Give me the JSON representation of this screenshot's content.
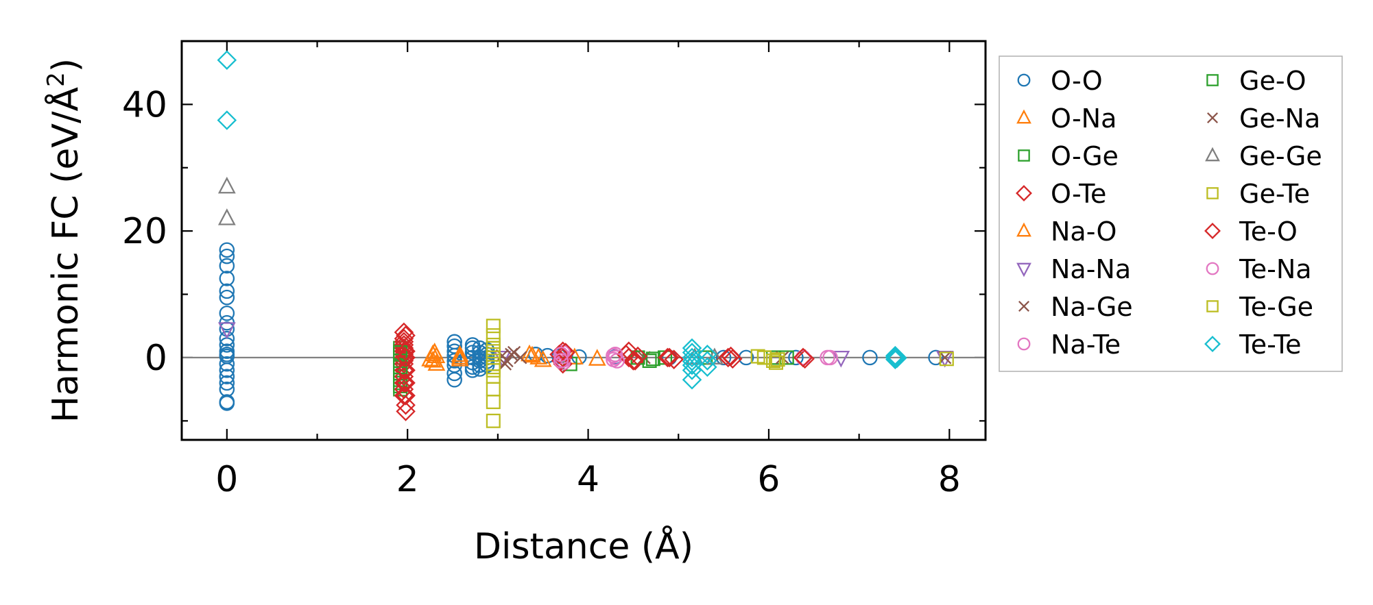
{
  "chart_data": {
    "type": "scatter",
    "title": "",
    "xlabel": "Distance (Å)",
    "ylabel_main": "Harmonic FC (eV/Å",
    "ylabel_sup": "2",
    "ylabel_close": ")",
    "xlim": [
      -0.5,
      8.4
    ],
    "ylim": [
      -13,
      50
    ],
    "xticks": [
      0,
      2,
      4,
      6,
      8
    ],
    "xtick_labels": [
      "0",
      "2",
      "4",
      "6",
      "8"
    ],
    "yticks": [
      0,
      20,
      40
    ],
    "ytick_labels": [
      "0",
      "20",
      "40"
    ],
    "x_minor_step": 1,
    "y_minor_step": 10,
    "zero_line": true,
    "grid": false,
    "legend_position": "outside-right",
    "legend_columns": 2,
    "series": [
      {
        "name": "O-O",
        "marker": "circle",
        "color": "#1f77b4",
        "filled": false,
        "x": [
          0,
          0,
          0,
          0,
          0,
          0,
          0,
          0,
          0,
          0,
          0,
          0,
          0,
          0,
          0,
          0,
          0,
          0,
          0,
          0,
          0,
          2.52,
          2.52,
          2.52,
          2.52,
          2.52,
          2.52,
          2.52,
          2.52,
          2.72,
          2.72,
          2.72,
          2.72,
          2.72,
          2.72,
          2.72,
          2.8,
          2.8,
          2.8,
          2.8,
          2.8,
          2.8,
          2.88,
          2.88,
          2.88,
          2.88,
          2.88,
          3.42,
          3.55,
          3.68,
          3.9,
          4.3,
          4.9,
          5.5,
          5.75,
          6.3,
          7.12,
          7.85
        ],
        "y": [
          17,
          16,
          14.5,
          12.5,
          10.5,
          9.5,
          7,
          5.5,
          4.5,
          3,
          2,
          1,
          -1,
          -2,
          -3,
          -4,
          -5,
          -7,
          -7.2,
          0.2,
          0.5,
          2.5,
          1.8,
          1,
          0.3,
          -0.5,
          -1.2,
          -2.5,
          -3.5,
          2,
          1.5,
          0.8,
          0,
          -0.8,
          -1.5,
          -2,
          1.5,
          0.8,
          0,
          -0.5,
          -1.2,
          -1.8,
          1.2,
          0.5,
          0,
          -0.6,
          -1.2,
          0.5,
          0.3,
          0.2,
          0.1,
          0.1,
          0,
          0,
          0,
          0,
          0,
          0
        ]
      },
      {
        "name": "O-Na",
        "marker": "triangle-up",
        "color": "#ff7f0e",
        "filled": false,
        "x": [
          2.28,
          2.28,
          2.32,
          2.32,
          2.58,
          2.58,
          3.38,
          3.45,
          3.85,
          4.1
        ],
        "y": [
          0.5,
          -0.5,
          0.2,
          -1,
          0.4,
          -0.3,
          0.3,
          0,
          0,
          -0.2
        ]
      },
      {
        "name": "O-Ge",
        "marker": "square",
        "color": "#2ca02c",
        "filled": false,
        "x": [
          1.92,
          1.92,
          1.92,
          1.92,
          1.92,
          1.92,
          1.92,
          1.92,
          1.92,
          1.92,
          1.92,
          1.92,
          1.92,
          1.92,
          3.8,
          4.68,
          4.85,
          5.3
        ],
        "y": [
          -4.5,
          -4,
          -3,
          -2,
          -1,
          0,
          1,
          -5,
          -3.5,
          -2.5,
          -1.5,
          -0.5,
          0.5,
          1.5,
          -1,
          -0.5,
          0,
          0
        ]
      },
      {
        "name": "O-Te",
        "marker": "diamond",
        "color": "#d62728",
        "filled": false,
        "x": [
          1.96,
          1.96,
          1.96,
          1.96,
          1.96,
          1.96,
          1.96,
          1.96,
          1.96,
          1.96,
          1.96,
          1.96,
          1.96,
          1.96,
          1.96,
          3.72,
          3.72,
          3.72,
          4.45,
          4.45,
          4.52,
          4.9,
          4.95,
          5.58,
          5.6,
          6.38,
          6.4
        ],
        "y": [
          4,
          3,
          2.5,
          2,
          1.5,
          1,
          0.5,
          0,
          -0.5,
          -1,
          -2,
          -3,
          -4,
          -5,
          -6,
          1,
          0,
          -1,
          1,
          0,
          -0.5,
          0,
          -0.3,
          0.2,
          -0.2,
          0,
          -0.2
        ]
      },
      {
        "name": "Na-O",
        "marker": "triangle-up",
        "color": "#ff7f0e",
        "filled": false,
        "x": [
          2.25,
          2.3,
          2.58,
          3.35,
          3.5
        ],
        "y": [
          -0.3,
          0.8,
          0,
          0.5,
          -0.4
        ]
      },
      {
        "name": "Na-Na",
        "marker": "triangle-down",
        "color": "#9467bd",
        "filled": false,
        "x": [
          0,
          3.05,
          6.8,
          7.95
        ],
        "y": [
          4.5,
          0,
          0,
          0
        ]
      },
      {
        "name": "Na-Ge",
        "marker": "x",
        "color": "#8c564b",
        "filled": false,
        "x": [
          3.05,
          3.1,
          3.18,
          3.25,
          4.62,
          5.45
        ],
        "y": [
          0.3,
          -0.5,
          0.8,
          0,
          0,
          0
        ]
      },
      {
        "name": "Na-Te",
        "marker": "circle",
        "color": "#e377c2",
        "filled": false,
        "x": [
          3.72,
          3.72,
          3.72,
          3.72,
          4.28,
          4.28,
          4.3,
          6.38,
          6.68
        ],
        "y": [
          0.8,
          0.2,
          -0.4,
          -0.8,
          0.3,
          -0.3,
          0,
          0,
          0
        ]
      },
      {
        "name": "Ge-O",
        "marker": "square",
        "color": "#2ca02c",
        "filled": false,
        "x": [
          1.92,
          1.92,
          1.92,
          4.55,
          4.72,
          6.05,
          6.2
        ],
        "y": [
          0.8,
          -0.5,
          -1.5,
          0,
          -0.2,
          0,
          0
        ]
      },
      {
        "name": "Ge-Na",
        "marker": "x",
        "color": "#8c564b",
        "filled": false,
        "x": [
          3.08,
          3.15,
          6.15,
          7.95
        ],
        "y": [
          -1,
          0.5,
          0,
          0
        ]
      },
      {
        "name": "Ge-Ge",
        "marker": "triangle-up",
        "color": "#7f7f7f",
        "filled": false,
        "x": [
          0,
          0,
          5.18,
          5.4
        ],
        "y": [
          27,
          22,
          0,
          0
        ]
      },
      {
        "name": "Ge-Te",
        "marker": "square",
        "color": "#bcbd22",
        "filled": false,
        "x": [
          2.95,
          2.95,
          2.95,
          2.95,
          2.95,
          2.95,
          2.95,
          2.95,
          2.95,
          2.95,
          2.95,
          2.95,
          5.88,
          5.95,
          6.05,
          6.1,
          7.97
        ],
        "y": [
          5,
          2,
          1,
          0,
          -1,
          -2,
          -3,
          -5,
          -7,
          -10,
          1.5,
          0.5,
          0.2,
          0,
          -0.5,
          -0.3,
          -0.2
        ]
      },
      {
        "name": "Te-O",
        "marker": "diamond",
        "color": "#d62728",
        "filled": false,
        "x": [
          1.98,
          1.98,
          1.98,
          1.98,
          1.98,
          1.98,
          1.98,
          1.98,
          3.68,
          3.7,
          3.75,
          4.42,
          4.5,
          4.55,
          4.88,
          5.55,
          6.38
        ],
        "y": [
          3.5,
          1,
          0,
          -2,
          -4,
          -6,
          -7.5,
          -8.5,
          0.5,
          -0.5,
          0.8,
          0.5,
          -0.5,
          0.2,
          0,
          0,
          0
        ]
      },
      {
        "name": "Te-Na",
        "marker": "circle",
        "color": "#e377c2",
        "filled": false,
        "x": [
          3.7,
          3.7,
          4.3,
          4.32,
          6.65
        ],
        "y": [
          0.5,
          -0.5,
          0.5,
          -0.5,
          0
        ]
      },
      {
        "name": "Te-Ge",
        "marker": "square",
        "color": "#bcbd22",
        "filled": false,
        "x": [
          2.95,
          2.95,
          5.95,
          6.08
        ],
        "y": [
          3.5,
          -1.5,
          0,
          -0.8
        ]
      },
      {
        "name": "Te-Te",
        "marker": "diamond",
        "color": "#17becf",
        "filled": false,
        "x": [
          0,
          0,
          5.15,
          5.15,
          5.15,
          5.15,
          5.15,
          5.15,
          5.15,
          5.32,
          5.32,
          5.32,
          7.4,
          7.4,
          7.4,
          7.4,
          7.42,
          7.42
        ],
        "y": [
          47,
          37.5,
          1.5,
          0.8,
          0,
          -0.6,
          -1.2,
          -2,
          -3.5,
          0.5,
          -0.5,
          -1.5,
          0.3,
          0,
          -0.3,
          0.1,
          -0.1,
          0
        ]
      }
    ]
  }
}
